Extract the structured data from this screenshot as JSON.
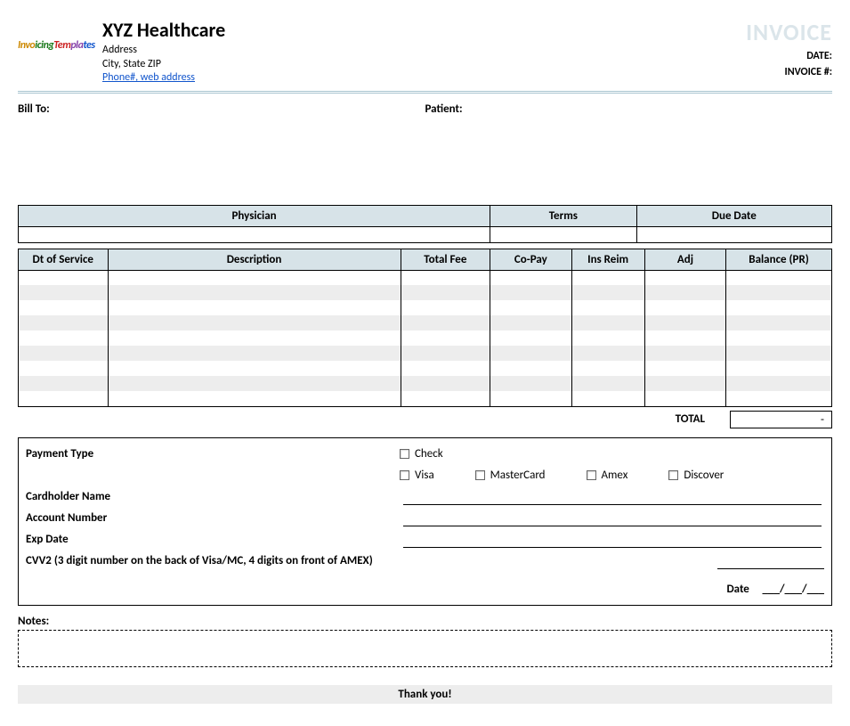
{
  "header": {
    "logo_text": "InvoicingTemplates",
    "company_name": "XYZ Healthcare",
    "address_line1": "Address",
    "address_line2": "City, State ZIP",
    "contact_link": "Phone#, web address",
    "invoice_title": "INVOICE",
    "date_label": "DATE:",
    "invoice_no_label": "INVOICE #:"
  },
  "billto": {
    "billto_label": "Bill To:",
    "patient_label": "Patient:"
  },
  "top_table": {
    "headers": [
      "Physician",
      "Terms",
      "Due Date"
    ],
    "col_widths": [
      "58%",
      "18%",
      "24%"
    ],
    "header_bg": "#d7e3e8",
    "values": [
      "",
      "",
      ""
    ]
  },
  "main_table": {
    "headers": [
      "Dt of Service",
      "Description",
      "Total Fee",
      "Co-Pay",
      "Ins Reim",
      "Adj",
      "Balance (PR)"
    ],
    "col_widths": [
      "11%",
      "36%",
      "11%",
      "10%",
      "9%",
      "10%",
      "13%"
    ],
    "header_bg": "#d7e3e8",
    "stripe_color": "#ededed",
    "row_count": 9,
    "rows": [
      [
        "",
        "",
        "",
        "",
        "",
        "",
        ""
      ],
      [
        "",
        "",
        "",
        "",
        "",
        "",
        ""
      ],
      [
        "",
        "",
        "",
        "",
        "",
        "",
        ""
      ],
      [
        "",
        "",
        "",
        "",
        "",
        "",
        ""
      ],
      [
        "",
        "",
        "",
        "",
        "",
        "",
        ""
      ],
      [
        "",
        "",
        "",
        "",
        "",
        "",
        ""
      ],
      [
        "",
        "",
        "",
        "",
        "",
        "",
        ""
      ],
      [
        "",
        "",
        "",
        "",
        "",
        "",
        ""
      ],
      [
        "",
        "",
        "",
        "",
        "",
        "",
        ""
      ]
    ]
  },
  "total": {
    "label": "TOTAL",
    "value": "-"
  },
  "payment": {
    "payment_type_label": "Payment Type",
    "options_row1": [
      "Check"
    ],
    "options_row2": [
      "Visa",
      "MasterCard",
      "Amex",
      "Discover"
    ],
    "cardholder_label": "Cardholder Name",
    "account_label": "Account Number",
    "exp_label": "Exp Date",
    "cvv_label": "CVV2 (3 digit number on the back of Visa/MC, 4 digits on front of AMEX)",
    "date_label": "Date",
    "date_placeholder": "___/___/___"
  },
  "notes": {
    "label": "Notes:"
  },
  "footer": {
    "thankyou": "Thank you!"
  },
  "colors": {
    "header_blue": "#d7e3e8",
    "stripe": "#ededed",
    "rule": "#a7c4cf",
    "invoice_title": "#dbe5ea"
  }
}
